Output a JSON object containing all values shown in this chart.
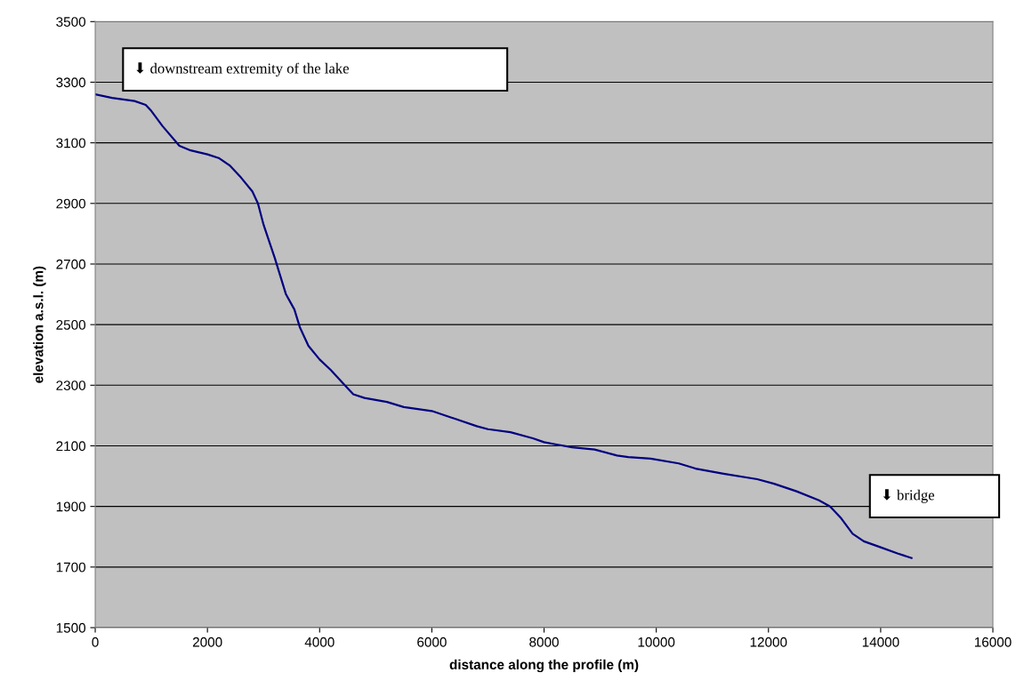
{
  "chart_data": {
    "type": "line",
    "xlabel": "distance along the profile (m)",
    "ylabel": "elevation a.s.l. (m)",
    "xlim": [
      0,
      16000
    ],
    "xticks": [
      0,
      2000,
      4000,
      6000,
      8000,
      10000,
      12000,
      14000,
      16000
    ],
    "ylim": [
      1500,
      3500
    ],
    "yticks": [
      1500,
      1700,
      1900,
      2100,
      2300,
      2500,
      2700,
      2900,
      3100,
      3300,
      3500
    ],
    "grid": "y",
    "legend": false,
    "marker": "none",
    "line_style": "solid",
    "annotations": [
      "⬇ downstream extremity of the lake",
      "⬇ bridge"
    ],
    "series": [
      {
        "color": "#000080",
        "x": [
          0,
          300,
          700,
          900,
          1000,
          1200,
          1500,
          1700,
          2000,
          2200,
          2400,
          2600,
          2800,
          2900,
          3000,
          3200,
          3400,
          3550,
          3650,
          3800,
          4000,
          4200,
          4400,
          4600,
          4800,
          5200,
          5500,
          6000,
          6400,
          6800,
          7000,
          7400,
          7800,
          8000,
          8200,
          8500,
          8900,
          9300,
          9500,
          9900,
          10400,
          10700,
          11200,
          11800,
          12100,
          12500,
          12900,
          13100,
          13300,
          13500,
          13700,
          14000,
          14300,
          14550
        ],
        "values": [
          3260,
          3248,
          3238,
          3225,
          3205,
          3155,
          3090,
          3075,
          3062,
          3050,
          3025,
          2985,
          2940,
          2900,
          2830,
          2720,
          2600,
          2550,
          2490,
          2430,
          2385,
          2350,
          2310,
          2270,
          2258,
          2245,
          2228,
          2215,
          2190,
          2165,
          2155,
          2145,
          2125,
          2112,
          2105,
          2095,
          2088,
          2068,
          2063,
          2058,
          2042,
          2025,
          2008,
          1990,
          1975,
          1950,
          1920,
          1900,
          1860,
          1810,
          1785,
          1765,
          1745,
          1730
        ]
      }
    ]
  }
}
